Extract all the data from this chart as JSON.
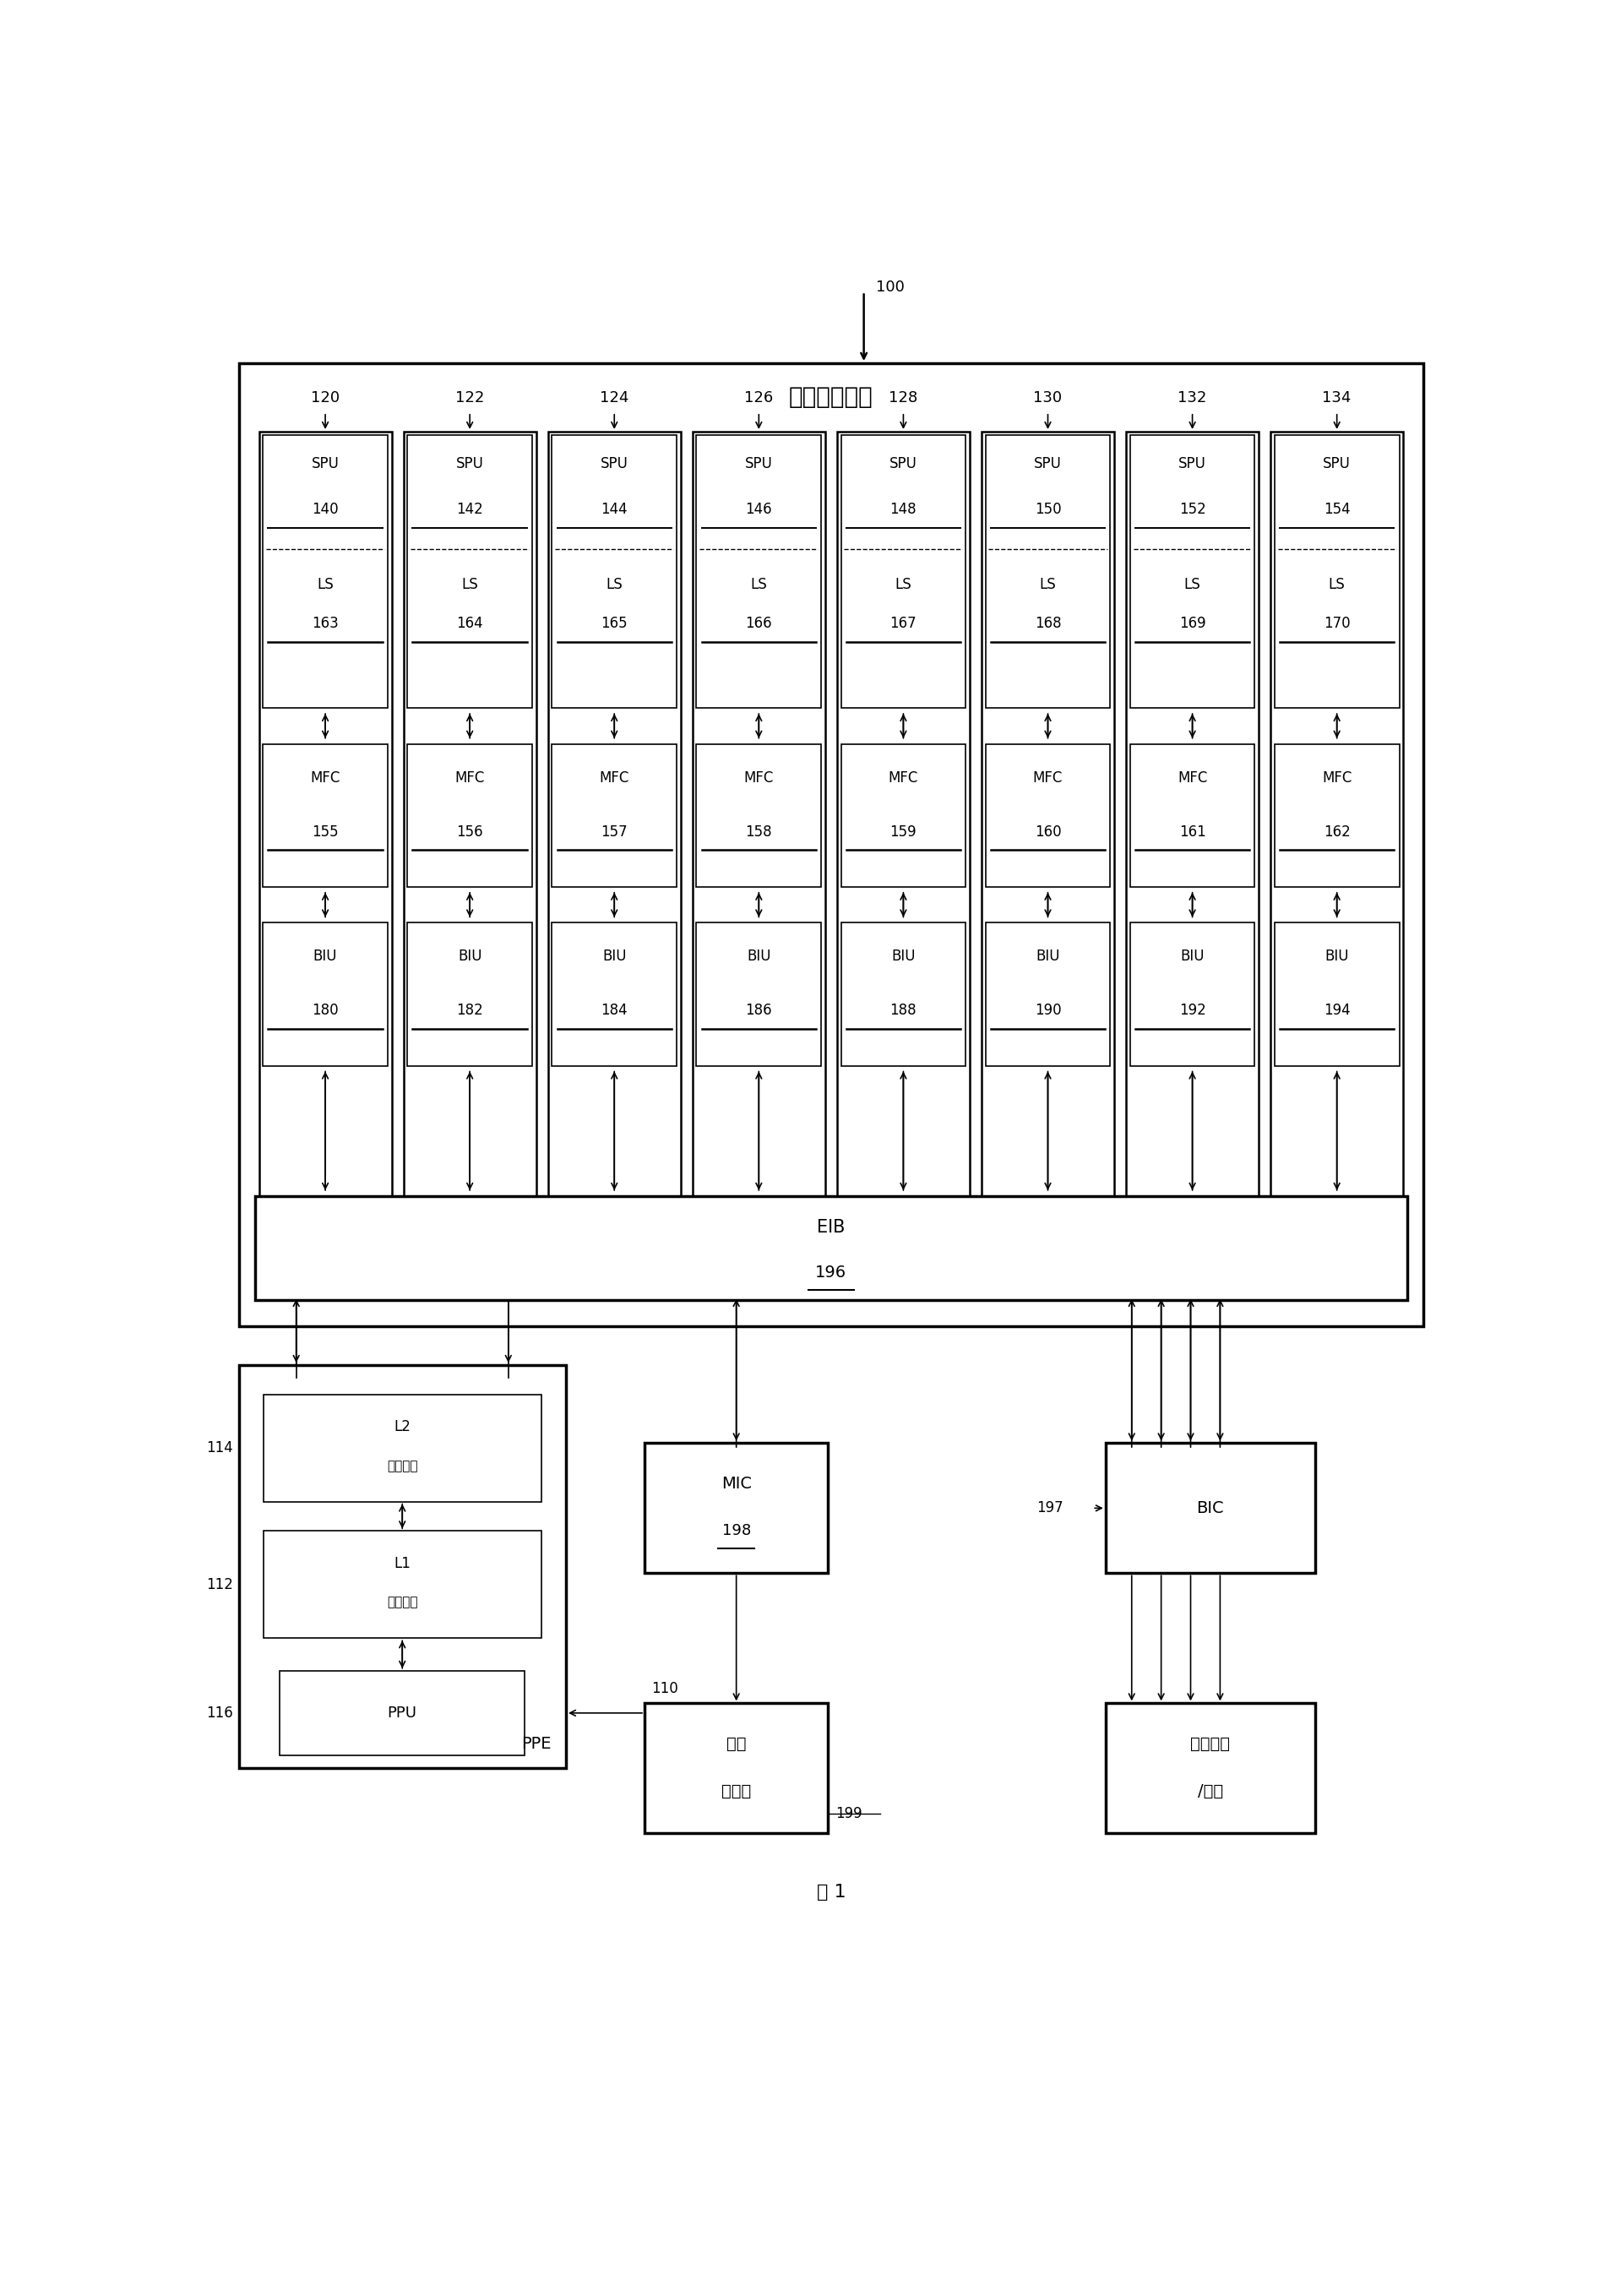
{
  "bg_color": "#ffffff",
  "fig_width": 19.19,
  "fig_height": 27.18,
  "title_text": "单元宽带引擎",
  "label_100": "100",
  "label_fig": "图 1",
  "spu_nums": [
    "140",
    "142",
    "144",
    "146",
    "148",
    "150",
    "152",
    "154"
  ],
  "ls_nums": [
    "163",
    "164",
    "165",
    "166",
    "167",
    "168",
    "169",
    "170"
  ],
  "mfc_nums": [
    "155",
    "156",
    "157",
    "158",
    "159",
    "160",
    "161",
    "162"
  ],
  "biu_nums": [
    "180",
    "182",
    "184",
    "186",
    "188",
    "190",
    "192",
    "194"
  ],
  "col_labels": [
    "120",
    "122",
    "124",
    "126",
    "128",
    "130",
    "132",
    "134"
  ],
  "eib_text": "EIB",
  "eib_num": "196",
  "ppe_label": "PPE",
  "l2_text": "L2",
  "l2_sub": "高速缓存",
  "l1_text": "L1",
  "l1_sub": "高速缓存",
  "ppu_label": "PPU",
  "mic_text": "MIC",
  "mic_num": "198",
  "bic_text": "BIC",
  "label_197": "197",
  "shared_line1": "共享",
  "shared_line2": "存储器",
  "label_199": "199",
  "ext_line1": "外部总线",
  "ext_line2": "/设备",
  "label_110": "110",
  "label_112": "112",
  "label_114": "114",
  "label_116": "116"
}
